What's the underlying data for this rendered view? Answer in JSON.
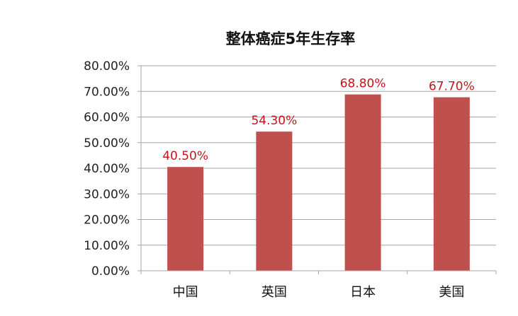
{
  "chart_data": {
    "type": "bar",
    "title": "整体癌症5年生存率",
    "categories": [
      "中国",
      "英国",
      "日本",
      "美国"
    ],
    "values": [
      40.5,
      54.3,
      68.8,
      67.7
    ],
    "data_labels": [
      "40.50%",
      "54.30%",
      "68.80%",
      "67.70%"
    ],
    "ylim": [
      0,
      80
    ],
    "yticks": [
      0,
      10,
      20,
      30,
      40,
      50,
      60,
      70,
      80
    ],
    "ytick_labels": [
      "0.00%",
      "10.00%",
      "20.00%",
      "30.00%",
      "40.00%",
      "50.00%",
      "60.00%",
      "70.00%",
      "80.00%"
    ],
    "grid": true,
    "legend": "none",
    "bar_color": "#c0504d",
    "label_color": "#c0161c",
    "grid_color": "#a6a6a6"
  }
}
